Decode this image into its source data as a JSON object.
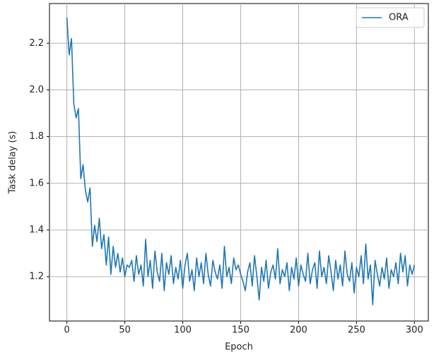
{
  "chart_data": {
    "type": "line",
    "x_label": "Epoch",
    "y_label": "Task delay (s)",
    "x": [
      0,
      2,
      4,
      6,
      8,
      10,
      12,
      14,
      16,
      18,
      20,
      22,
      24,
      26,
      28,
      30,
      32,
      34,
      36,
      38,
      40,
      42,
      44,
      46,
      48,
      50,
      52,
      54,
      56,
      58,
      60,
      62,
      64,
      66,
      68,
      70,
      72,
      74,
      76,
      78,
      80,
      82,
      84,
      86,
      88,
      90,
      92,
      94,
      96,
      98,
      100,
      102,
      104,
      106,
      108,
      110,
      112,
      114,
      116,
      118,
      120,
      122,
      124,
      126,
      128,
      130,
      132,
      134,
      136,
      138,
      140,
      142,
      144,
      146,
      148,
      150,
      152,
      154,
      156,
      158,
      160,
      162,
      164,
      166,
      168,
      170,
      172,
      174,
      176,
      178,
      180,
      182,
      184,
      186,
      188,
      190,
      192,
      194,
      196,
      198,
      200,
      202,
      204,
      206,
      208,
      210,
      212,
      214,
      216,
      218,
      220,
      222,
      224,
      226,
      228,
      230,
      232,
      234,
      236,
      238,
      240,
      242,
      244,
      246,
      248,
      250,
      252,
      254,
      256,
      258,
      260,
      262,
      264,
      266,
      268,
      270,
      272,
      274,
      276,
      278,
      280,
      282,
      284,
      286,
      288,
      290,
      292,
      294,
      296,
      298,
      300
    ],
    "series": [
      {
        "name": "ORA",
        "color": "#1f77b4",
        "values": [
          2.31,
          2.15,
          2.22,
          1.94,
          1.88,
          1.92,
          1.62,
          1.68,
          1.57,
          1.52,
          1.58,
          1.33,
          1.42,
          1.35,
          1.45,
          1.32,
          1.38,
          1.25,
          1.37,
          1.21,
          1.33,
          1.24,
          1.3,
          1.22,
          1.28,
          1.2,
          1.25,
          1.24,
          1.27,
          1.18,
          1.29,
          1.21,
          1.25,
          1.16,
          1.36,
          1.2,
          1.27,
          1.15,
          1.31,
          1.22,
          1.18,
          1.3,
          1.14,
          1.26,
          1.21,
          1.29,
          1.17,
          1.24,
          1.19,
          1.27,
          1.15,
          1.25,
          1.3,
          1.18,
          1.23,
          1.14,
          1.28,
          1.2,
          1.26,
          1.17,
          1.3,
          1.21,
          1.16,
          1.27,
          1.22,
          1.19,
          1.25,
          1.15,
          1.33,
          1.2,
          1.24,
          1.17,
          1.28,
          1.23,
          1.25,
          1.21,
          1.18,
          1.14,
          1.22,
          1.26,
          1.16,
          1.29,
          1.2,
          1.1,
          1.24,
          1.18,
          1.27,
          1.15,
          1.22,
          1.25,
          1.19,
          1.32,
          1.17,
          1.23,
          1.2,
          1.26,
          1.14,
          1.24,
          1.19,
          1.28,
          1.16,
          1.25,
          1.21,
          1.18,
          1.3,
          1.17,
          1.23,
          1.26,
          1.15,
          1.31,
          1.2,
          1.24,
          1.17,
          1.29,
          1.22,
          1.14,
          1.27,
          1.19,
          1.25,
          1.16,
          1.31,
          1.21,
          1.18,
          1.26,
          1.13,
          1.24,
          1.2,
          1.29,
          1.17,
          1.34,
          1.19,
          1.25,
          1.08,
          1.27,
          1.21,
          1.16,
          1.24,
          1.19,
          1.28,
          1.15,
          1.23,
          1.2,
          1.26,
          1.17,
          1.3,
          1.22,
          1.29,
          1.16,
          1.25,
          1.21,
          1.25
        ]
      }
    ],
    "xlim": [
      -15,
      312
    ],
    "ylim": [
      1.01,
      2.37
    ],
    "xticks": [
      0,
      50,
      100,
      150,
      200,
      250,
      300
    ],
    "yticks": [
      1.2,
      1.4,
      1.6,
      1.8,
      {
        "value": 2,
        "label": "2.0"
      },
      2.2
    ],
    "grid": true,
    "legend": "upper right"
  }
}
